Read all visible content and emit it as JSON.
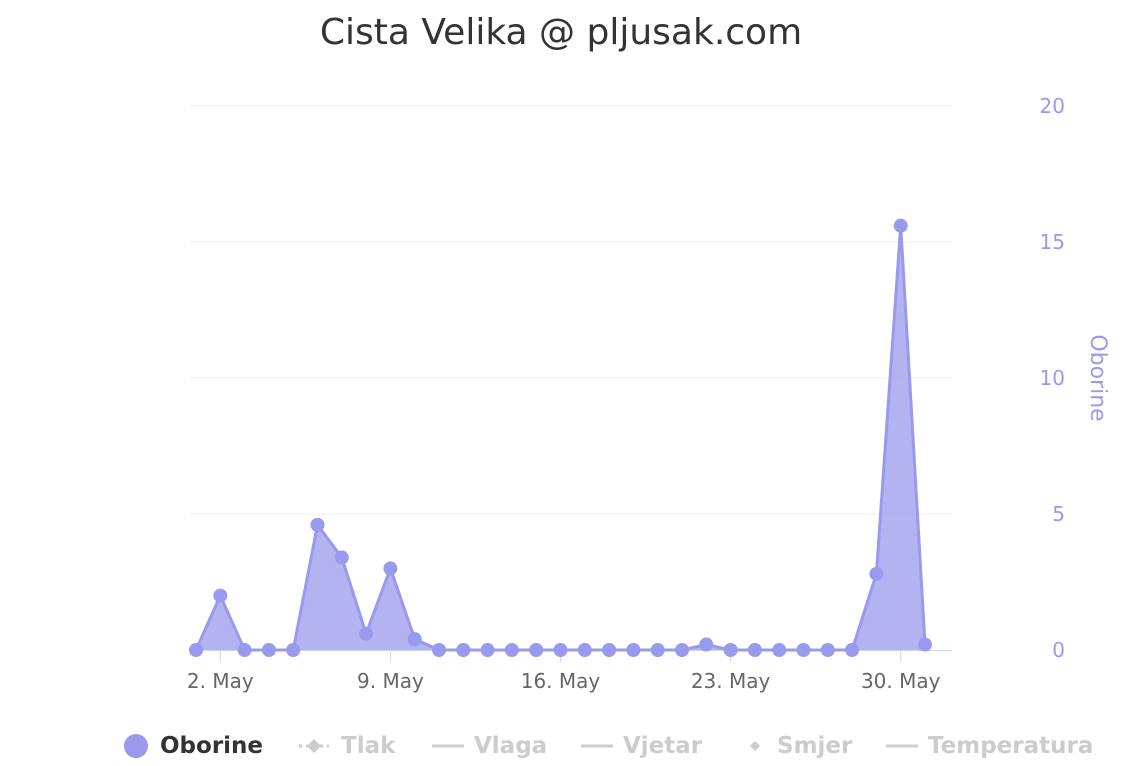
{
  "chart_data": {
    "type": "area",
    "title": "Cista Velika @ pljusak.com",
    "x": [
      "1. May",
      "2. May",
      "3. May",
      "4. May",
      "5. May",
      "6. May",
      "7. May",
      "8. May",
      "9. May",
      "10. May",
      "11. May",
      "12. May",
      "13. May",
      "14. May",
      "15. May",
      "16. May",
      "17. May",
      "18. May",
      "19. May",
      "20. May",
      "21. May",
      "22. May",
      "23. May",
      "24. May",
      "25. May",
      "26. May",
      "27. May",
      "28. May",
      "29. May",
      "30. May",
      "31. May"
    ],
    "series": [
      {
        "name": "Oborine",
        "color": "#9999ee",
        "visible": true,
        "values": [
          0,
          2.0,
          0,
          0,
          0,
          4.6,
          3.4,
          0.6,
          3.0,
          0.4,
          0,
          0,
          0,
          0,
          0,
          0,
          0,
          0,
          0,
          0,
          0,
          0.2,
          0,
          0,
          0,
          0,
          0,
          0,
          2.8,
          15.6,
          0.2
        ]
      }
    ],
    "x_tick_labels": [
      "2. May",
      "9. May",
      "16. May",
      "23. May",
      "30. May"
    ],
    "y_axis": {
      "title": "Oborine",
      "position": "right",
      "ticks": [
        "0",
        "5",
        "10",
        "15",
        "20"
      ],
      "ylim": [
        0,
        20
      ]
    },
    "grid": true,
    "legend_position": "bottom",
    "legend": [
      {
        "name": "Oborine",
        "symbol": "circle",
        "visible": true
      },
      {
        "name": "Tlak",
        "symbol": "dashed-diamond",
        "visible": false
      },
      {
        "name": "Vlaga",
        "symbol": "line",
        "visible": false
      },
      {
        "name": "Vjetar",
        "symbol": "line",
        "visible": false
      },
      {
        "name": "Smjer",
        "symbol": "diamond",
        "visible": false
      },
      {
        "name": "Temperatura",
        "symbol": "line",
        "visible": false
      }
    ]
  }
}
